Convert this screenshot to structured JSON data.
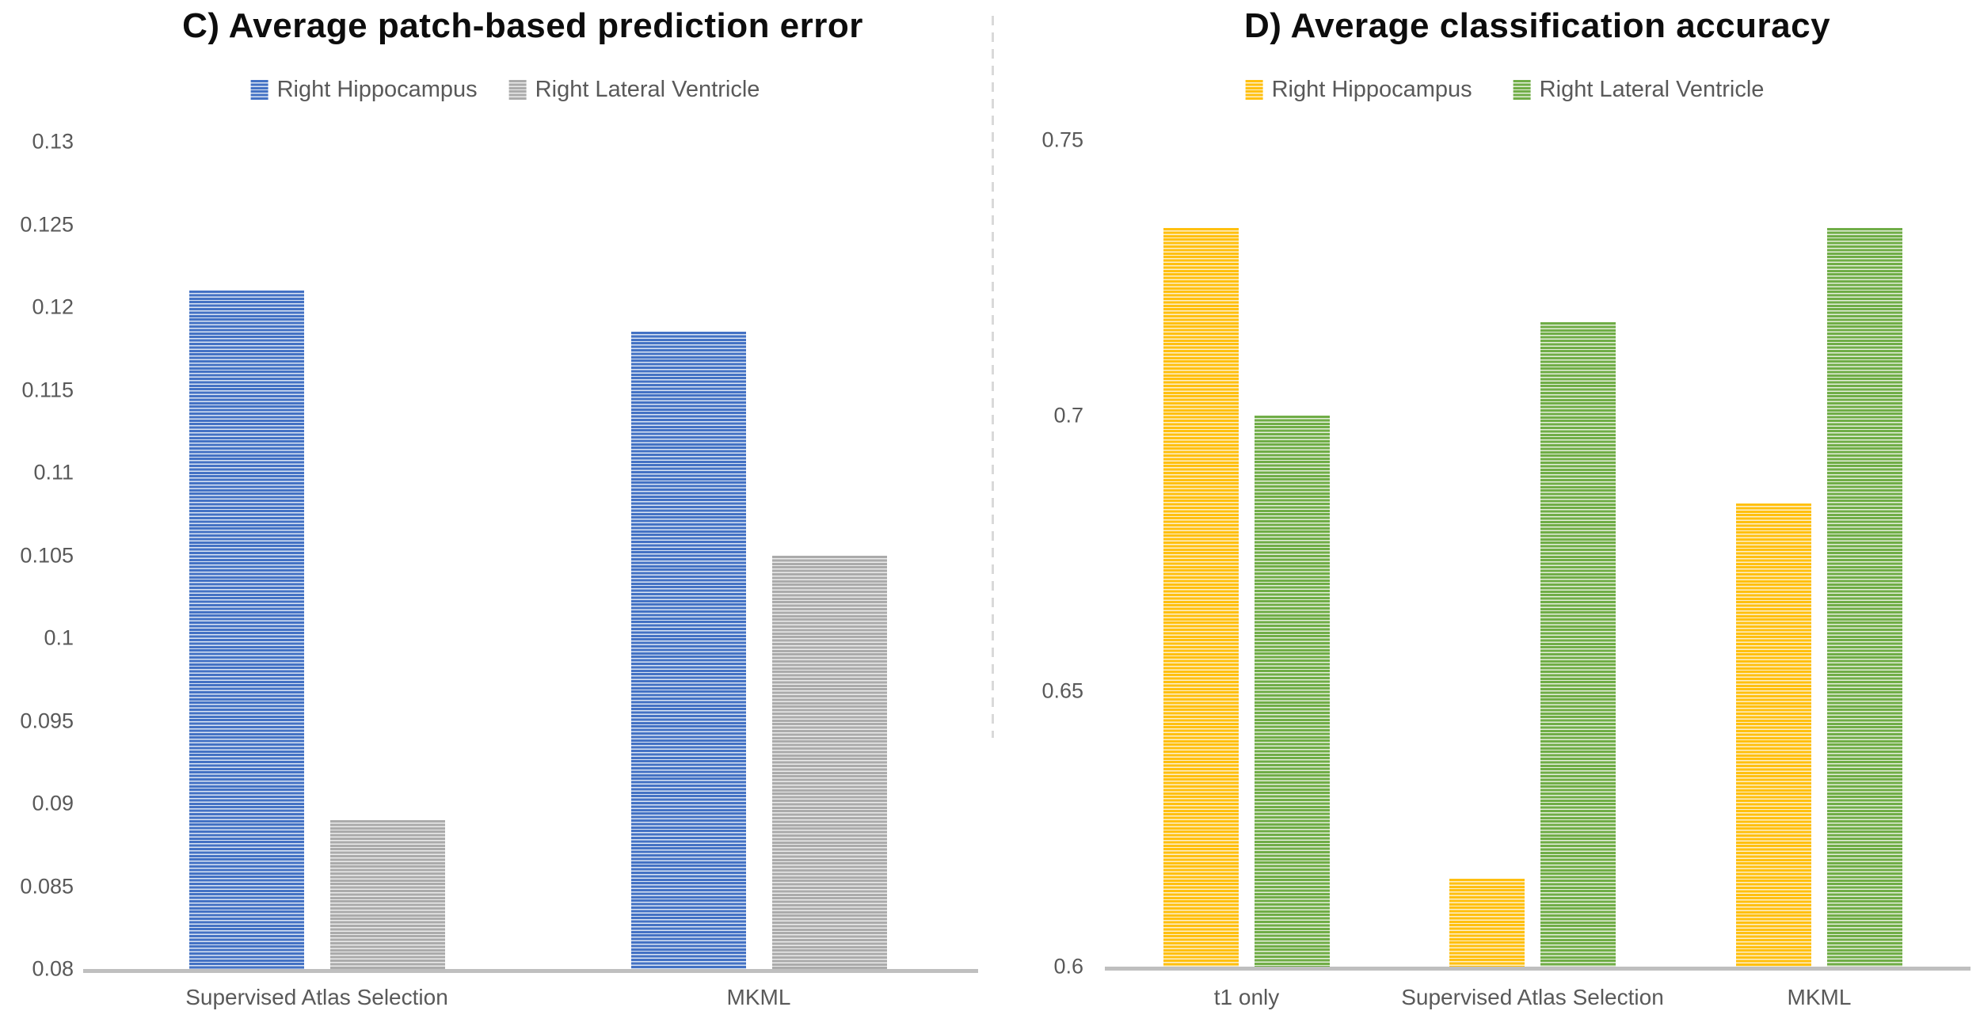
{
  "page": {
    "background": "#ffffff"
  },
  "divider": {
    "color": "#d9d9d9"
  },
  "chart_data": [
    {
      "type": "bar",
      "title": "C) Average patch-based prediction error",
      "categories": [
        "Supervised Atlas Selection",
        "MKML"
      ],
      "series": [
        {
          "name": "Right Hippocampus",
          "color": "#4472C4",
          "stripe_color": "#dbe5f4",
          "values": [
            0.121,
            0.1185
          ]
        },
        {
          "name": "Right Lateral Ventricle",
          "color": "#ABABAB",
          "stripe_color": "#ebebeb",
          "values": [
            0.089,
            0.105
          ]
        }
      ],
      "xlabel": "",
      "ylabel": "",
      "ylim": [
        0.08,
        0.13
      ],
      "ytick_labels": [
        "0.13",
        "0.125",
        "0.12",
        "0.115",
        "0.11",
        "0.105",
        "0.1",
        "0.095",
        "0.09",
        "0.085",
        "0.08"
      ],
      "ytick_values": [
        0.13,
        0.125,
        0.12,
        0.115,
        0.11,
        0.105,
        0.1,
        0.095,
        0.09,
        0.085,
        0.08
      ],
      "legend_position": "top",
      "grid": false,
      "axis_color": "#bfbfbf",
      "text_color": "#595959"
    },
    {
      "type": "bar",
      "title": "D) Average classification accuracy",
      "categories": [
        "t1 only",
        "Supervised Atlas Selection",
        "MKML"
      ],
      "series": [
        {
          "name": "Right Hippocampus",
          "color": "#FFC010",
          "stripe_color": "#fdf0cd",
          "values": [
            0.734,
            0.616,
            0.684
          ]
        },
        {
          "name": "Right Lateral Ventricle",
          "color": "#70AD47",
          "stripe_color": "#e6f0dc",
          "values": [
            0.7,
            0.717,
            0.734
          ]
        }
      ],
      "xlabel": "",
      "ylabel": "",
      "ylim": [
        0.6,
        0.75
      ],
      "ytick_labels": [
        "0.75",
        "0.7",
        "0.65",
        "0.6"
      ],
      "ytick_values": [
        0.75,
        0.7,
        0.65,
        0.6
      ],
      "legend_position": "top",
      "grid": false,
      "axis_color": "#bfbfbf",
      "text_color": "#595959"
    }
  ]
}
